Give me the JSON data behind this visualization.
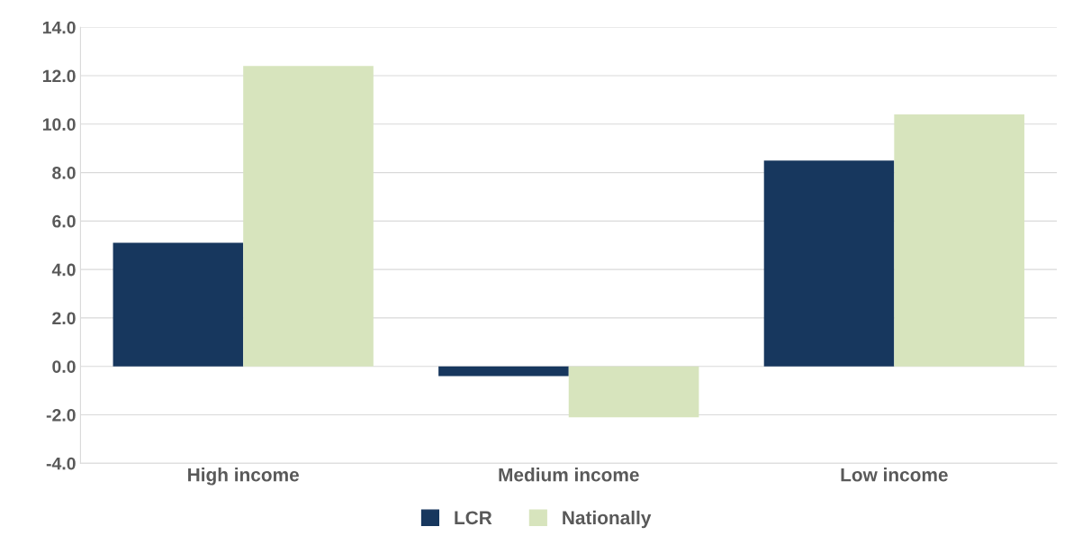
{
  "chart_data": {
    "type": "bar",
    "categories": [
      "High income",
      "Medium income",
      "Low income"
    ],
    "series": [
      {
        "name": "LCR",
        "color": "#17375e",
        "values": [
          5.1,
          -0.4,
          8.5
        ]
      },
      {
        "name": "Nationally",
        "color": "#d7e4bd",
        "values": [
          12.4,
          -2.1,
          10.4
        ]
      }
    ],
    "ylim": [
      -4,
      14
    ],
    "yticks": [
      {
        "value": -4,
        "label": "-4.0"
      },
      {
        "value": -2,
        "label": "-2.0"
      },
      {
        "value": 0,
        "label": "0.0"
      },
      {
        "value": 2,
        "label": "2.0"
      },
      {
        "value": 4,
        "label": "4.0"
      },
      {
        "value": 6,
        "label": "6.0"
      },
      {
        "value": 8,
        "label": "8.0"
      },
      {
        "value": 10,
        "label": "10.0"
      },
      {
        "value": 12,
        "label": "12.0"
      },
      {
        "value": 14,
        "label": "14.0"
      }
    ],
    "grid": "y",
    "legend": "bottom"
  }
}
